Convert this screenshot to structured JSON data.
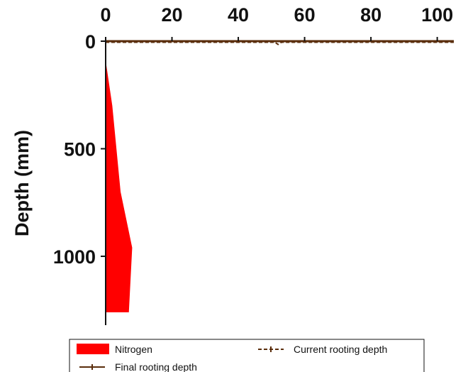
{
  "chart_data": {
    "type": "area",
    "orientation": "vertical-profile",
    "x_axis": {
      "position": "top",
      "ticks": [
        0,
        20,
        40,
        60,
        80,
        100
      ],
      "tick_labels": [
        "0",
        "20",
        "40",
        "60",
        "80",
        "100"
      ],
      "range": [
        0,
        105
      ],
      "label": ""
    },
    "y_axis": {
      "ticks": [
        0,
        500,
        1000
      ],
      "tick_labels": [
        "0",
        "500",
        "1000"
      ],
      "range": [
        0,
        1320
      ],
      "inverted": true,
      "label": "Depth (mm)"
    },
    "series": [
      {
        "name": "Nitrogen",
        "kind": "area",
        "color": "#ff0000",
        "points": [
          {
            "depth": 90,
            "value": 0
          },
          {
            "depth": 300,
            "value": 2
          },
          {
            "depth": 700,
            "value": 4.5
          },
          {
            "depth": 960,
            "value": 8
          },
          {
            "depth": 1260,
            "value": 7
          },
          {
            "depth": 1260,
            "value": 0
          }
        ]
      },
      {
        "name": "Current rooting depth",
        "kind": "line",
        "style": "dashed",
        "color": "#5a2d0c",
        "points": [
          {
            "value": 0,
            "depth": 5
          },
          {
            "value": 51,
            "depth": 5
          },
          {
            "value": 52,
            "depth": 15
          },
          {
            "value": 53,
            "depth": 5
          },
          {
            "value": 105,
            "depth": 5
          }
        ]
      },
      {
        "name": "Final rooting depth",
        "kind": "line",
        "style": "solid",
        "color": "#5a2d0c",
        "points": [
          {
            "value": 0,
            "depth": 0
          },
          {
            "value": 105,
            "depth": 0
          }
        ]
      }
    ],
    "legend": {
      "placement": "bottom",
      "entries": [
        {
          "label": "Nitrogen",
          "symbol": "filled-box",
          "color": "#ff0000"
        },
        {
          "label": "Current rooting depth",
          "symbol": "dashed-line",
          "color": "#5a2d0c"
        },
        {
          "label": "Final rooting depth",
          "symbol": "solid-line",
          "color": "#5a2d0c"
        }
      ]
    },
    "grid": false
  }
}
